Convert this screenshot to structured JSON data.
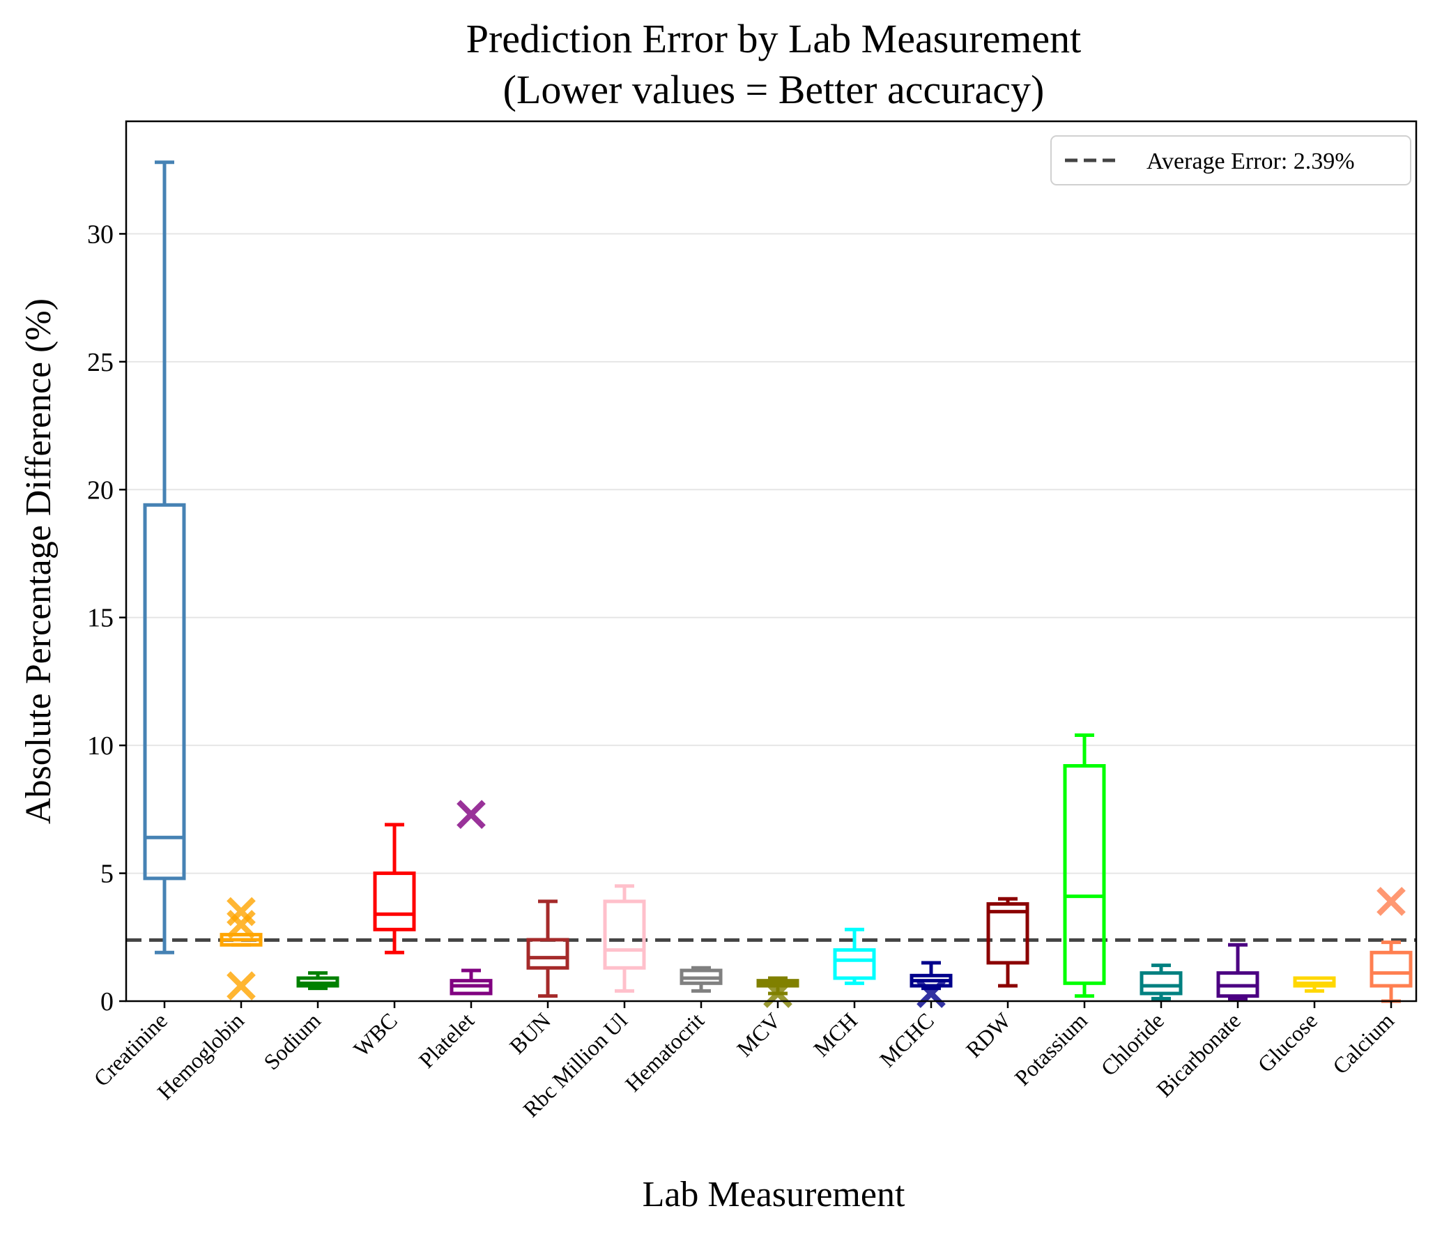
{
  "chart_data": {
    "type": "box",
    "title": "Prediction Error by Lab Measurement",
    "subtitle": "(Lower values = Better accuracy)",
    "xlabel": "Lab Measurement",
    "ylabel": "Absolute Percentage Difference (%)",
    "ylim": [
      0,
      34.4
    ],
    "yticks": [
      0,
      5,
      10,
      15,
      20,
      25,
      30
    ],
    "grid": "horizontal",
    "legend_position": "upper right",
    "reference_line": {
      "label": "Average Error: 2.39%",
      "value": 2.39,
      "color": "#444444",
      "style": "dashed"
    },
    "categories": [
      "Creatinine",
      "Hemoglobin",
      "Sodium",
      "WBC",
      "Platelet",
      "BUN",
      "Rbc Million Ul",
      "Hematocrit",
      "MCV",
      "MCH",
      "MCHC",
      "RDW",
      "Potassium",
      "Chloride",
      "Bicarbonate",
      "Glucose",
      "Calcium"
    ],
    "boxes": [
      {
        "name": "Creatinine",
        "color": "#4682B4",
        "whislo": 1.9,
        "q1": 4.8,
        "med": 6.4,
        "q3": 19.4,
        "whishi": 32.8,
        "fliers": []
      },
      {
        "name": "Hemoglobin",
        "color": "#FFA500",
        "whislo": 2.2,
        "q1": 2.2,
        "med": 2.4,
        "q3": 2.6,
        "whishi": 2.6,
        "fliers": [
          0.6,
          3.0,
          3.5
        ]
      },
      {
        "name": "Sodium",
        "color": "#008000",
        "whislo": 0.5,
        "q1": 0.6,
        "med": 0.7,
        "q3": 0.9,
        "whishi": 1.1,
        "fliers": []
      },
      {
        "name": "WBC",
        "color": "#FF0000",
        "whislo": 1.9,
        "q1": 2.8,
        "med": 3.4,
        "q3": 5.0,
        "whishi": 6.9,
        "fliers": []
      },
      {
        "name": "Platelet",
        "color": "#800080",
        "whislo": 0.3,
        "q1": 0.3,
        "med": 0.6,
        "q3": 0.8,
        "whishi": 1.2,
        "fliers": [
          7.3
        ]
      },
      {
        "name": "BUN",
        "color": "#A52A2A",
        "whislo": 0.2,
        "q1": 1.3,
        "med": 1.7,
        "q3": 2.4,
        "whishi": 3.9,
        "fliers": []
      },
      {
        "name": "Rbc Million Ul",
        "color": "#FFC0CB",
        "whislo": 0.4,
        "q1": 1.3,
        "med": 2.0,
        "q3": 3.9,
        "whishi": 4.5,
        "fliers": []
      },
      {
        "name": "Hematocrit",
        "color": "#808080",
        "whislo": 0.4,
        "q1": 0.7,
        "med": 0.9,
        "q3": 1.2,
        "whishi": 1.3,
        "fliers": []
      },
      {
        "name": "MCV",
        "color": "#808000",
        "whislo": 0.3,
        "q1": 0.6,
        "med": 0.7,
        "q3": 0.8,
        "whishi": 0.9,
        "fliers": [
          0.3
        ]
      },
      {
        "name": "MCH",
        "color": "#00FFFF",
        "whislo": 0.7,
        "q1": 0.9,
        "med": 1.6,
        "q3": 2.0,
        "whishi": 2.8,
        "fliers": []
      },
      {
        "name": "MCHC",
        "color": "#00008B",
        "whislo": 0.5,
        "q1": 0.6,
        "med": 0.8,
        "q3": 1.0,
        "whishi": 1.5,
        "fliers": [
          0.3
        ]
      },
      {
        "name": "RDW",
        "color": "#8B0000",
        "whislo": 0.6,
        "q1": 1.5,
        "med": 3.5,
        "q3": 3.8,
        "whishi": 4.0,
        "fliers": []
      },
      {
        "name": "Potassium",
        "color": "#00FF00",
        "whislo": 0.2,
        "q1": 0.7,
        "med": 4.1,
        "q3": 9.2,
        "whishi": 10.4,
        "fliers": []
      },
      {
        "name": "Chloride",
        "color": "#008080",
        "whislo": 0.1,
        "q1": 0.3,
        "med": 0.6,
        "q3": 1.1,
        "whishi": 1.4,
        "fliers": []
      },
      {
        "name": "Bicarbonate",
        "color": "#4B0082",
        "whislo": 0.1,
        "q1": 0.2,
        "med": 0.6,
        "q3": 1.1,
        "whishi": 2.2,
        "fliers": []
      },
      {
        "name": "Glucose",
        "color": "#FFD700",
        "whislo": 0.4,
        "q1": 0.6,
        "med": 0.7,
        "q3": 0.9,
        "whishi": 0.9,
        "fliers": []
      },
      {
        "name": "Calcium",
        "color": "#FF7F50",
        "whislo": 0.0,
        "q1": 0.6,
        "med": 1.1,
        "q3": 1.9,
        "whishi": 2.3,
        "fliers": [
          3.9
        ]
      }
    ]
  }
}
